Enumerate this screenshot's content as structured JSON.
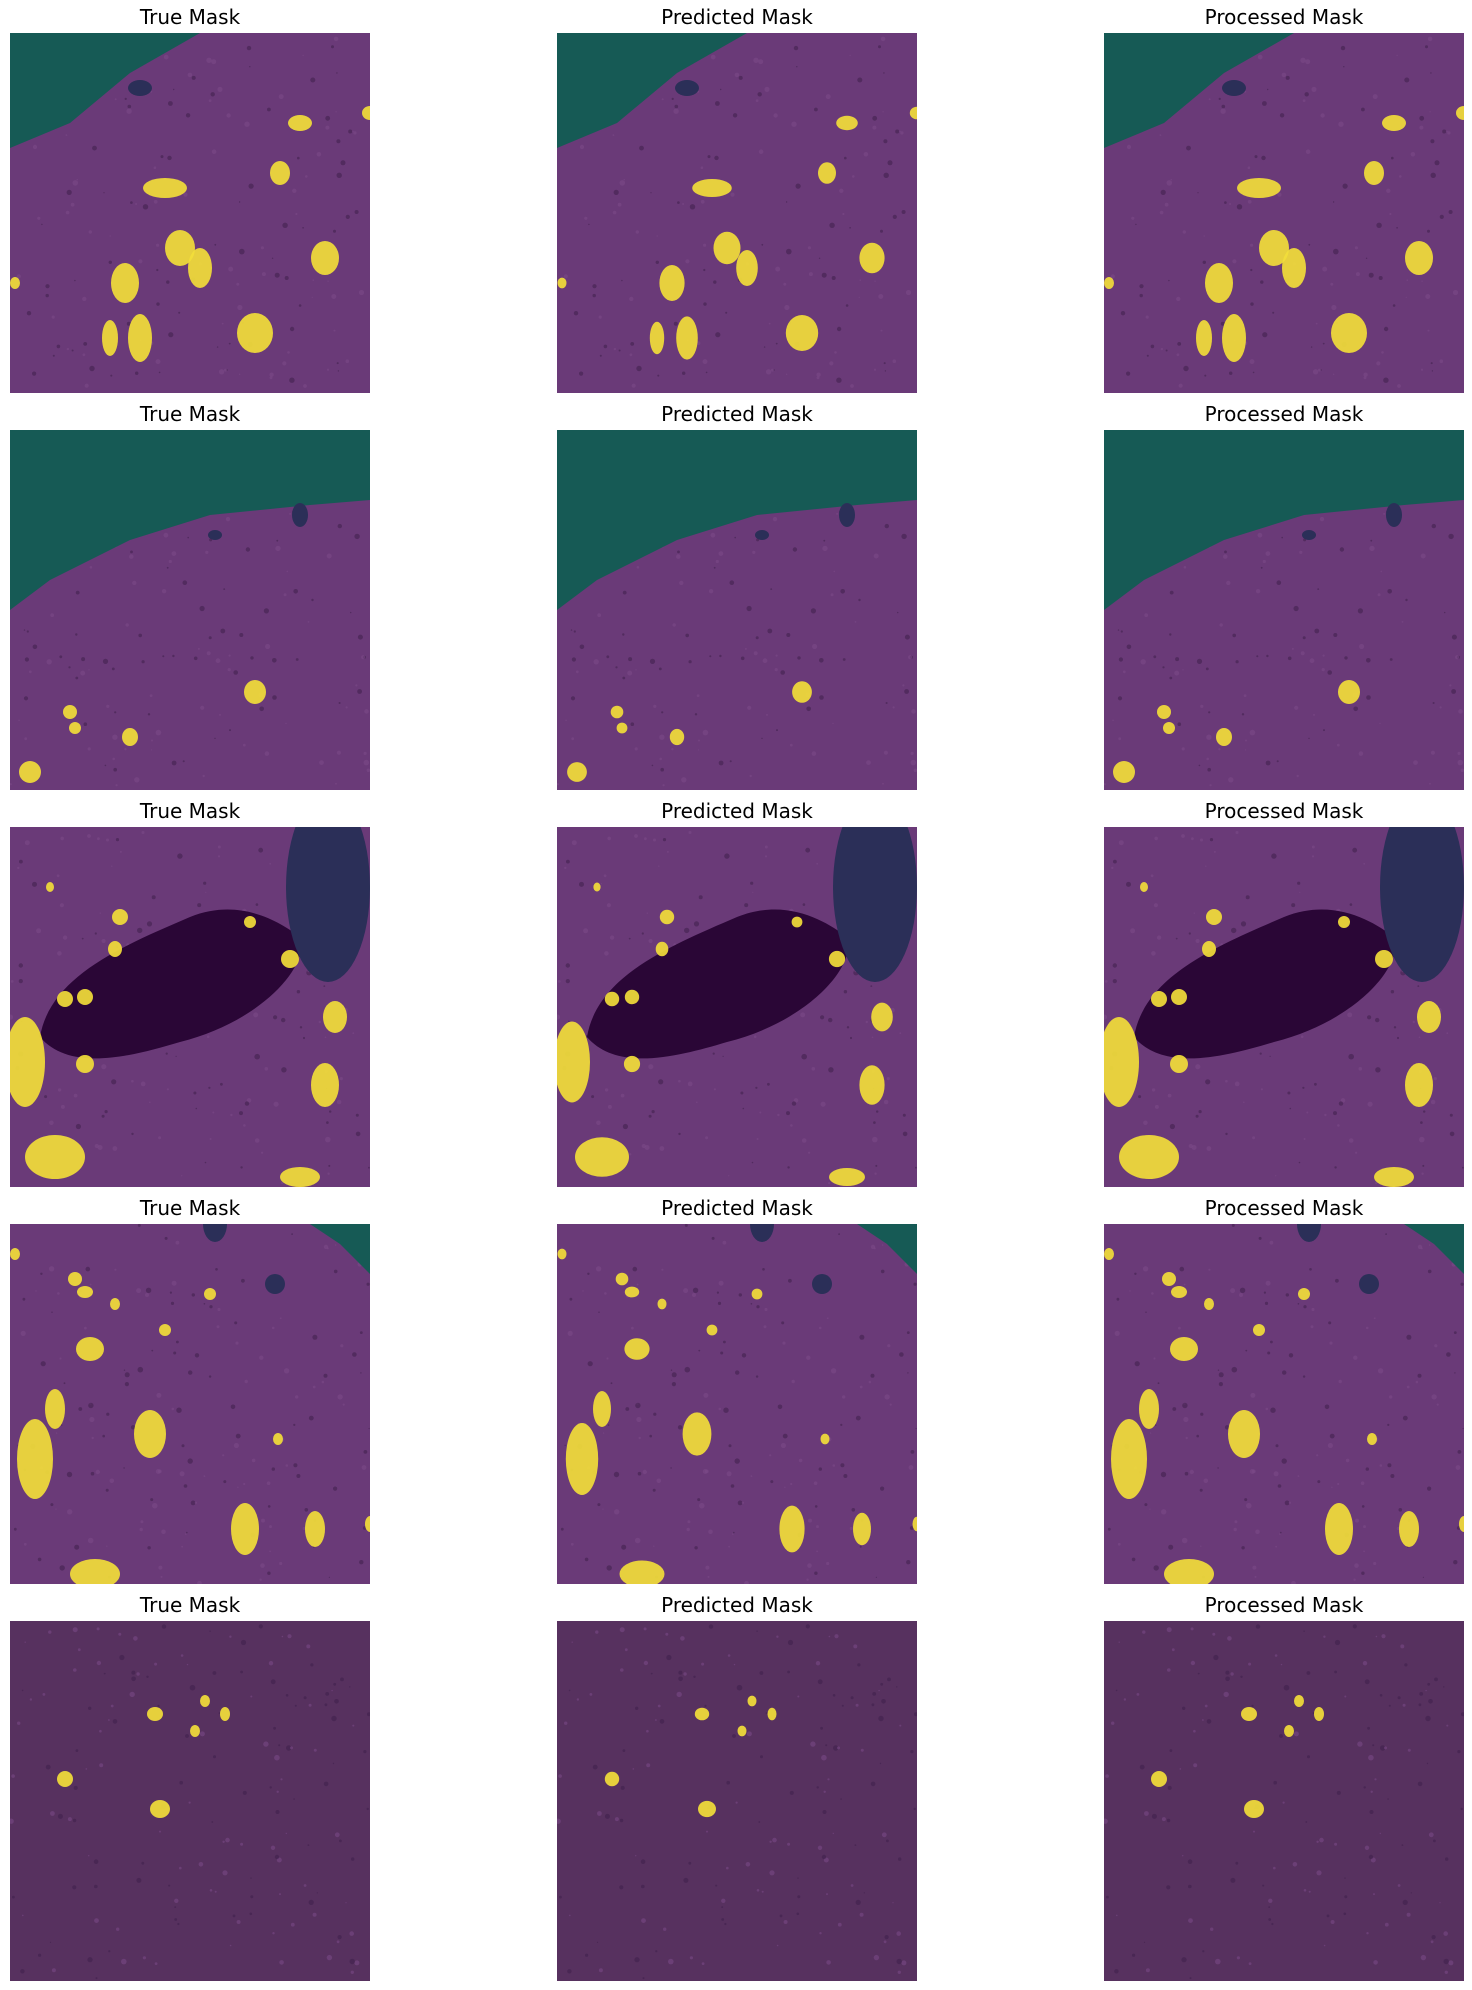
{
  "colors": {
    "background_class": "#6a3a78",
    "sky_class": "#165a55",
    "shadow_class": "#2a0636",
    "spacecraft_class": "#2b2f58",
    "rock_class": "#f2dd3a"
  },
  "rows": [
    {
      "titles": [
        "True Mask",
        "Predicted Mask",
        "Processed Mask"
      ]
    },
    {
      "titles": [
        "True Mask",
        "Predicted Mask",
        "Processed Mask"
      ]
    },
    {
      "titles": [
        "True Mask",
        "Predicted Mask",
        "Processed Mask"
      ]
    },
    {
      "titles": [
        "True Mask",
        "Predicted Mask",
        "Processed Mask"
      ]
    },
    {
      "titles": [
        "True Mask",
        "Predicted Mask",
        "Processed Mask"
      ]
    }
  ]
}
